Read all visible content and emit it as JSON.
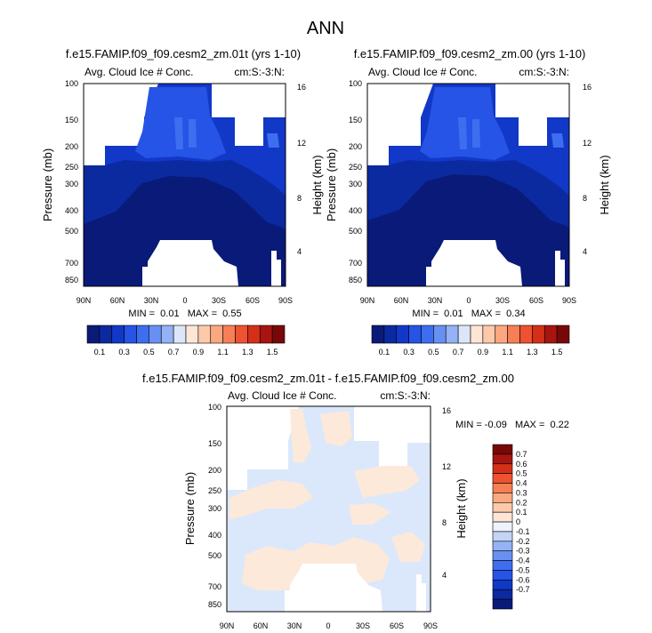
{
  "page_title": "ANN",
  "colors": {
    "fill_scale": [
      "#0a1a78",
      "#0b2aa0",
      "#1238c8",
      "#2554e6",
      "#3d6ef0",
      "#6890f2",
      "#94b2f4",
      "#dde6f8",
      "#fde6d6",
      "#fcc9aa",
      "#fba880",
      "#f77f55",
      "#ee5230",
      "#d43018",
      "#a81410",
      "#780808"
    ],
    "diff_scale": [
      "#0a1a78",
      "#0b2aa0",
      "#1238c8",
      "#2554e6",
      "#3d6ef0",
      "#6890f2",
      "#94b2f4",
      "#c4d4f6",
      "#eef2fb",
      "#fde6d6",
      "#fcc9aa",
      "#fba880",
      "#f77f55",
      "#ee5230",
      "#d43018",
      "#a81410",
      "#780808"
    ]
  },
  "chart_data": [
    {
      "type": "heatmap",
      "title": "f.e15.FAMIP.f09_f09.cesm2_zm.01t (yrs 1-10)",
      "left_label": "Avg. Cloud Ice # Conc.",
      "right_label": "cm:S:-3:N:",
      "ylabel": "Pressure (mb)",
      "ylabel_right": "Height (km)",
      "x_ticks": [
        "90N",
        "60N",
        "30N",
        "0",
        "30S",
        "60S",
        "90S"
      ],
      "y_ticks": [
        "100",
        "150",
        "200",
        "250",
        "300",
        "400",
        "500",
        "700",
        "850"
      ],
      "y_ticks_right": [
        "16",
        "12",
        "8",
        "4"
      ],
      "stats_text": "MIN =  0.01   MAX =  0.55",
      "colorbar_labels": [
        "0.1",
        "0.3",
        "0.5",
        "0.7",
        "0.9",
        "1.1",
        "1.3",
        "1.5"
      ]
    },
    {
      "type": "heatmap",
      "title": "f.e15.FAMIP.f09_f09.cesm2_zm.00 (yrs 1-10)",
      "left_label": "Avg. Cloud Ice # Conc.",
      "right_label": "cm:S:-3:N:",
      "ylabel": "Pressure (mb)",
      "ylabel_right": "Height (km)",
      "x_ticks": [
        "90N",
        "60N",
        "30N",
        "0",
        "30S",
        "60S",
        "90S"
      ],
      "y_ticks": [
        "100",
        "150",
        "200",
        "250",
        "300",
        "400",
        "500",
        "700",
        "850"
      ],
      "y_ticks_right": [
        "16",
        "12",
        "8",
        "4"
      ],
      "stats_text": "MIN =  0.01   MAX =  0.34",
      "colorbar_labels": [
        "0.1",
        "0.3",
        "0.5",
        "0.7",
        "0.9",
        "1.1",
        "1.3",
        "1.5"
      ]
    },
    {
      "type": "heatmap",
      "title": "f.e15.FAMIP.f09_f09.cesm2_zm.01t - f.e15.FAMIP.f09_f09.cesm2_zm.00",
      "left_label": "Avg. Cloud Ice # Conc.",
      "right_label": "cm:S:-3:N:",
      "ylabel": "Pressure (mb)",
      "ylabel_right": "Height (km)",
      "x_ticks": [
        "90N",
        "60N",
        "30N",
        "0",
        "30S",
        "60S",
        "90S"
      ],
      "y_ticks": [
        "100",
        "150",
        "200",
        "250",
        "300",
        "400",
        "500",
        "700",
        "850"
      ],
      "y_ticks_right": [
        "16",
        "12",
        "8",
        "4"
      ],
      "stats_text": "MIN = -0.09   MAX =  0.22",
      "colorbar_labels": [
        "0.7",
        "0.6",
        "0.5",
        "0.4",
        "0.3",
        "0.2",
        "0.1",
        "0",
        "-0.1",
        "-0.2",
        "-0.3",
        "-0.4",
        "-0.5",
        "-0.6",
        "-0.7"
      ]
    }
  ]
}
